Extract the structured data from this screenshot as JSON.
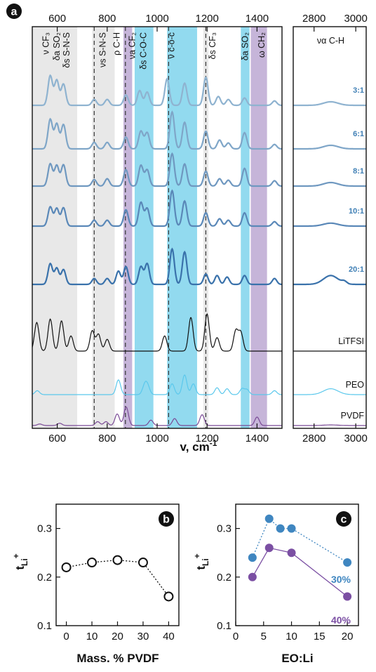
{
  "chart_data": [
    {
      "panel": "a",
      "type": "line",
      "xlabel_main": "v, cm",
      "xlabel_sup": "-1",
      "left_region": {
        "xlim": [
          500,
          1500
        ],
        "ticks": [
          600,
          800,
          1000,
          1200,
          1400
        ]
      },
      "right_region": {
        "xlim": [
          2700,
          3050
        ],
        "ticks": [
          2800,
          3000
        ]
      },
      "colors": {
        "3:1": "#8fb3d0",
        "6:1": "#7fa6c8",
        "8:1": "#6f98c0",
        "10:1": "#5a88b8",
        "20:1": "#3a72ab",
        "LiTFSI": "#111111",
        "PEO": "#5bc8ec",
        "PVDF": "#7a4a96",
        "grey_band": "#e8e8e8",
        "cyan_band": "#7fd3ec",
        "purple_band": "#bca8d2"
      },
      "bands": [
        {
          "type": "grey",
          "from": 500,
          "to": 680
        },
        {
          "type": "grey",
          "from": 740,
          "to": 830
        },
        {
          "type": "purple",
          "from": 865,
          "to": 900
        },
        {
          "type": "cyan",
          "from": 910,
          "to": 985
        },
        {
          "type": "cyan",
          "from": 1040,
          "to": 1160
        },
        {
          "type": "grey",
          "from": 1185,
          "to": 1205
        },
        {
          "type": "cyan",
          "from": 1335,
          "to": 1370
        },
        {
          "type": "purple",
          "from": 1375,
          "to": 1440
        }
      ],
      "dashed_lines": [
        748,
        873,
        1046,
        1195
      ],
      "band_labels": [
        {
          "text": "ν CF₃",
          "x": 555
        },
        {
          "text": "δa SO₂",
          "x": 598
        },
        {
          "text": "δs S-N-S",
          "x": 638
        },
        {
          "text": "νs S-N-S",
          "x": 783
        },
        {
          "text": "ρ C-H",
          "x": 838
        },
        {
          "text": "νa CF₂",
          "x": 900
        },
        {
          "text": "δs C-O-C",
          "x": 945
        },
        {
          "text": "ν c-o-c",
          "x": 1058
        },
        {
          "text": "δs CF₃",
          "x": 1222
        },
        {
          "text": "δa SO₂",
          "x": 1353
        },
        {
          "text": "ω CH₂",
          "x": 1418
        },
        {
          "text": "να C-H",
          "x": 2880,
          "region": "right"
        }
      ],
      "series": [
        {
          "name": "3:1",
          "peaks": [
            [
              572,
              1.0
            ],
            [
              598,
              0.85
            ],
            [
              625,
              0.72
            ],
            [
              748,
              0.2
            ],
            [
              800,
              0.2
            ],
            [
              875,
              0.35
            ],
            [
              930,
              0.5
            ],
            [
              960,
              0.45
            ],
            [
              1040,
              0.9
            ],
            [
              1110,
              0.75
            ],
            [
              1195,
              0.95
            ],
            [
              1245,
              0.3
            ],
            [
              1285,
              0.2
            ],
            [
              1350,
              0.25
            ],
            [
              1470,
              0.15
            ]
          ],
          "ch_peak": 0.12
        },
        {
          "name": "6:1",
          "peaks": [
            [
              572,
              1.0
            ],
            [
              598,
              0.85
            ],
            [
              625,
              0.82
            ],
            [
              748,
              0.22
            ],
            [
              800,
              0.22
            ],
            [
              875,
              0.4
            ],
            [
              935,
              0.6
            ],
            [
              960,
              0.55
            ],
            [
              1060,
              1.25
            ],
            [
              1110,
              0.9
            ],
            [
              1195,
              0.6
            ],
            [
              1250,
              0.3
            ],
            [
              1285,
              0.2
            ],
            [
              1350,
              0.55
            ],
            [
              1470,
              0.15
            ]
          ],
          "ch_peak": 0.12
        },
        {
          "name": "8:1",
          "peaks": [
            [
              572,
              0.75
            ],
            [
              598,
              0.7
            ],
            [
              625,
              0.72
            ],
            [
              748,
              0.22
            ],
            [
              800,
              0.25
            ],
            [
              875,
              0.55
            ],
            [
              935,
              0.7
            ],
            [
              960,
              0.55
            ],
            [
              1060,
              1.1
            ],
            [
              1110,
              0.75
            ],
            [
              1195,
              0.5
            ],
            [
              1250,
              0.25
            ],
            [
              1285,
              0.2
            ],
            [
              1350,
              0.6
            ],
            [
              1470,
              0.18
            ]
          ],
          "ch_peak": 0.12
        },
        {
          "name": "10:1",
          "peaks": [
            [
              572,
              0.65
            ],
            [
              598,
              0.6
            ],
            [
              625,
              0.62
            ],
            [
              748,
              0.2
            ],
            [
              800,
              0.2
            ],
            [
              875,
              0.55
            ],
            [
              935,
              0.8
            ],
            [
              960,
              0.6
            ],
            [
              1060,
              1.2
            ],
            [
              1110,
              0.85
            ],
            [
              1195,
              0.45
            ],
            [
              1250,
              0.25
            ],
            [
              1285,
              0.2
            ],
            [
              1350,
              0.45
            ],
            [
              1470,
              0.15
            ]
          ],
          "ch_peak": 0.1
        },
        {
          "name": "20:1",
          "peaks": [
            [
              572,
              0.7
            ],
            [
              598,
              0.55
            ],
            [
              625,
              0.5
            ],
            [
              748,
              0.2
            ],
            [
              800,
              0.2
            ],
            [
              845,
              0.45
            ],
            [
              875,
              0.6
            ],
            [
              935,
              0.6
            ],
            [
              960,
              0.7
            ],
            [
              1060,
              1.2
            ],
            [
              1110,
              1.1
            ],
            [
              1195,
              0.35
            ],
            [
              1240,
              0.3
            ],
            [
              1280,
              0.25
            ],
            [
              1350,
              0.3
            ],
            [
              1470,
              0.2
            ]
          ],
          "ch_peak": 0.3
        },
        {
          "name": "LiTFSI",
          "peaks": [
            [
              518,
              0.85
            ],
            [
              572,
              0.95
            ],
            [
              617,
              0.9
            ],
            [
              655,
              0.45
            ],
            [
              740,
              0.6
            ],
            [
              765,
              0.5
            ],
            [
              800,
              0.35
            ],
            [
              1030,
              0.45
            ],
            [
              1135,
              1.0
            ],
            [
              1200,
              1.1
            ],
            [
              1240,
              0.4
            ],
            [
              1315,
              0.6
            ],
            [
              1335,
              0.55
            ]
          ],
          "ch_peak": 0.0
        },
        {
          "name": "PEO",
          "peaks": [
            [
              520,
              0.2
            ],
            [
              845,
              0.75
            ],
            [
              950,
              0.45
            ],
            [
              962,
              0.4
            ],
            [
              1060,
              0.55
            ],
            [
              1110,
              1.0
            ],
            [
              1145,
              0.55
            ],
            [
              1240,
              0.35
            ],
            [
              1280,
              0.3
            ],
            [
              1340,
              0.3
            ],
            [
              1360,
              0.25
            ],
            [
              1470,
              0.2
            ]
          ],
          "ch_peak": 0.3
        },
        {
          "name": "PVDF",
          "peaks": [
            [
              530,
              0.1
            ],
            [
              610,
              0.15
            ],
            [
              762,
              0.25
            ],
            [
              795,
              0.25
            ],
            [
              840,
              0.75
            ],
            [
              876,
              1.2
            ],
            [
              975,
              0.35
            ],
            [
              1070,
              0.45
            ],
            [
              1180,
              0.7
            ],
            [
              1400,
              0.55
            ]
          ],
          "ch_peak": 0.04
        }
      ]
    },
    {
      "panel": "b",
      "type": "scatter",
      "xlabel": "Mass. % PVDF",
      "ylabel_main": "t",
      "ylabel_sub": "Li",
      "ylabel_sup": "+",
      "xlim": [
        -4,
        44
      ],
      "ylim": [
        0.1,
        0.35
      ],
      "xticks": [
        0,
        10,
        20,
        30,
        40
      ],
      "yticks": [
        0.1,
        0.2,
        0.3
      ],
      "series": [
        {
          "x": [
            0,
            10,
            20,
            30,
            40
          ],
          "y": [
            0.22,
            0.23,
            0.235,
            0.23,
            0.16
          ]
        }
      ]
    },
    {
      "panel": "c",
      "type": "scatter",
      "xlabel": "EO:Li",
      "ylabel_main": "t",
      "ylabel_sub": "Li",
      "ylabel_sup": "+",
      "xlim": [
        0,
        22
      ],
      "ylim": [
        0.1,
        0.35
      ],
      "xticks": [
        0,
        5,
        10,
        15,
        20
      ],
      "yticks": [
        0.1,
        0.2,
        0.3
      ],
      "series": [
        {
          "name": "30%",
          "color": "#3f86c0",
          "x": [
            3,
            6,
            8,
            10,
            20
          ],
          "y": [
            0.24,
            0.32,
            0.3,
            0.3,
            0.23
          ]
        },
        {
          "name": "40%",
          "color": "#7b4fa3",
          "x": [
            3,
            6,
            10,
            20
          ],
          "y": [
            0.2,
            0.26,
            0.25,
            0.16
          ]
        }
      ]
    }
  ],
  "panel_letters": [
    "a",
    "b",
    "c"
  ]
}
